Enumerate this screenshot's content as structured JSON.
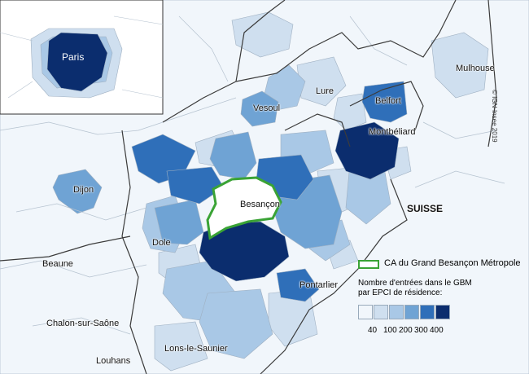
{
  "colors": {
    "class_0": "#f1f6fb",
    "class_1": "#cfdfef",
    "class_2": "#a9c8e6",
    "class_3": "#6fa3d4",
    "class_4": "#2f6fb9",
    "class_5": "#0b2d6e",
    "border": "#3b3b3b",
    "outline": "#3aa335"
  },
  "inset": {
    "label": "Paris"
  },
  "places": {
    "mulhouse": "Mulhouse",
    "lure": "Lure",
    "belfort": "Belfort",
    "vesoul": "Vesoul",
    "montbeliard": "Montbéliard",
    "dijon": "Dijon",
    "besancon": "Besançon",
    "suisse": "SUISSE",
    "dole": "Dole",
    "beaune": "Beaune",
    "pontarlier": "Pontarlier",
    "chalon": "Chalon-sur-Saône",
    "lons": "Lons-le-Saunier",
    "louhans": "Louhans"
  },
  "credit": "© IGN-Insee 2019",
  "legend": {
    "outline_label": "CA du Grand Besançon Métropole",
    "title_line1": "Nombre d'entrées dans le GBM",
    "title_line2": "par EPCI de résidence:",
    "classes": [
      "class_0",
      "class_1",
      "class_2",
      "class_3",
      "class_4",
      "class_5"
    ],
    "ticks": [
      "40",
      "100",
      "200",
      "300",
      "400"
    ]
  }
}
